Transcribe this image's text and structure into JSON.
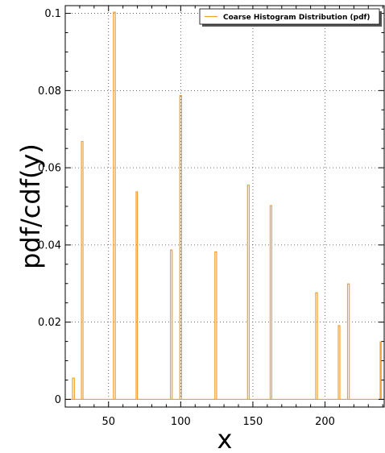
{
  "chart_data": {
    "type": "line",
    "style": "step",
    "xlabel": "x",
    "ylabel": "pdf/cdf(y)",
    "xlim": [
      20,
      241
    ],
    "ylim": [
      -0.002,
      0.102
    ],
    "x_ticks": [
      50,
      100,
      150,
      200
    ],
    "y_ticks": [
      0,
      0.02,
      0.04,
      0.06,
      0.08,
      0.1
    ],
    "x_tick_labels": [
      "50",
      "100",
      "150",
      "200"
    ],
    "y_tick_labels": [
      "0",
      "0.02",
      "0.04",
      "0.06",
      "0.08",
      "0.1"
    ],
    "grid": true,
    "legend_position": "top-right",
    "series": [
      {
        "name": "Coarse Histogram Distribution (pdf)",
        "color": "#f0a030",
        "bars": [
          {
            "x0": 25.0,
            "x1": 26.3,
            "y": 0.0055
          },
          {
            "x0": 31.2,
            "x1": 32.3,
            "y": 0.0668
          },
          {
            "x0": 53.4,
            "x1": 54.7,
            "y": 0.1003
          },
          {
            "x0": 69.1,
            "x1": 70.0,
            "y": 0.0538
          },
          {
            "x0": 92.9,
            "x1": 94.1,
            "y": 0.0387
          },
          {
            "x0": 99.4,
            "x1": 100.6,
            "y": 0.0787
          },
          {
            "x0": 123.7,
            "x1": 124.9,
            "y": 0.0382
          },
          {
            "x0": 146.3,
            "x1": 147.5,
            "y": 0.0555
          },
          {
            "x0": 162.0,
            "x1": 163.1,
            "y": 0.0502
          },
          {
            "x0": 193.5,
            "x1": 194.7,
            "y": 0.0276
          },
          {
            "x0": 209.2,
            "x1": 210.3,
            "y": 0.0191
          },
          {
            "x0": 215.6,
            "x1": 216.8,
            "y": 0.0299
          },
          {
            "x0": 238.2,
            "x1": 238.9,
            "y": 0.0149
          }
        ]
      }
    ]
  }
}
